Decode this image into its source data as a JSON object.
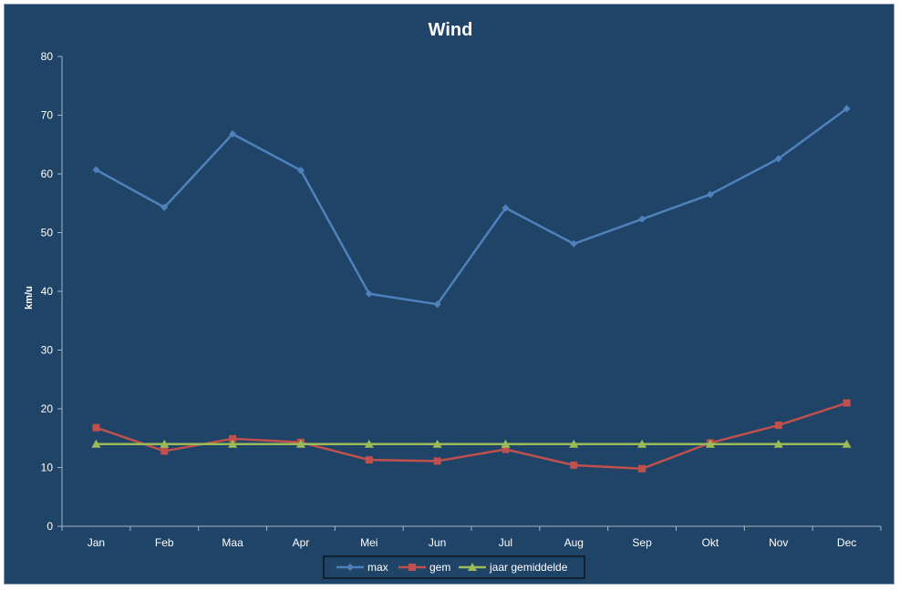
{
  "chart_data": {
    "type": "line",
    "title": "Wind",
    "xlabel": "",
    "ylabel": "km/u",
    "ylim": [
      0,
      80
    ],
    "yticks": [
      0,
      10,
      20,
      30,
      40,
      50,
      60,
      70,
      80
    ],
    "grid": false,
    "legend_position": "bottom",
    "categories": [
      "Jan",
      "Feb",
      "Maa",
      "Apr",
      "Mei",
      "Jun",
      "Jul",
      "Aug",
      "Sep",
      "Okt",
      "Nov",
      "Dec"
    ],
    "series": [
      {
        "name": "max",
        "color": "#4F81BD",
        "marker": "diamond",
        "values": [
          60.7,
          54.3,
          66.8,
          60.6,
          39.6,
          37.8,
          54.2,
          48.1,
          52.3,
          56.5,
          62.6,
          71.1
        ]
      },
      {
        "name": "gem",
        "color": "#C0504D",
        "marker": "square",
        "values": [
          16.8,
          12.8,
          14.9,
          14.3,
          11.3,
          11.1,
          13.1,
          10.4,
          9.8,
          14.2,
          17.2,
          21.0
        ]
      },
      {
        "name": "jaar gemiddelde",
        "color": "#9BBB59",
        "marker": "triangle",
        "values": [
          14.0,
          14.0,
          14.0,
          14.0,
          14.0,
          14.0,
          14.0,
          14.0,
          14.0,
          14.0,
          14.0,
          14.0
        ]
      }
    ],
    "axis_color": "#A6B4C4",
    "text_color": "#FFFFFF",
    "background": "#1F4467"
  }
}
